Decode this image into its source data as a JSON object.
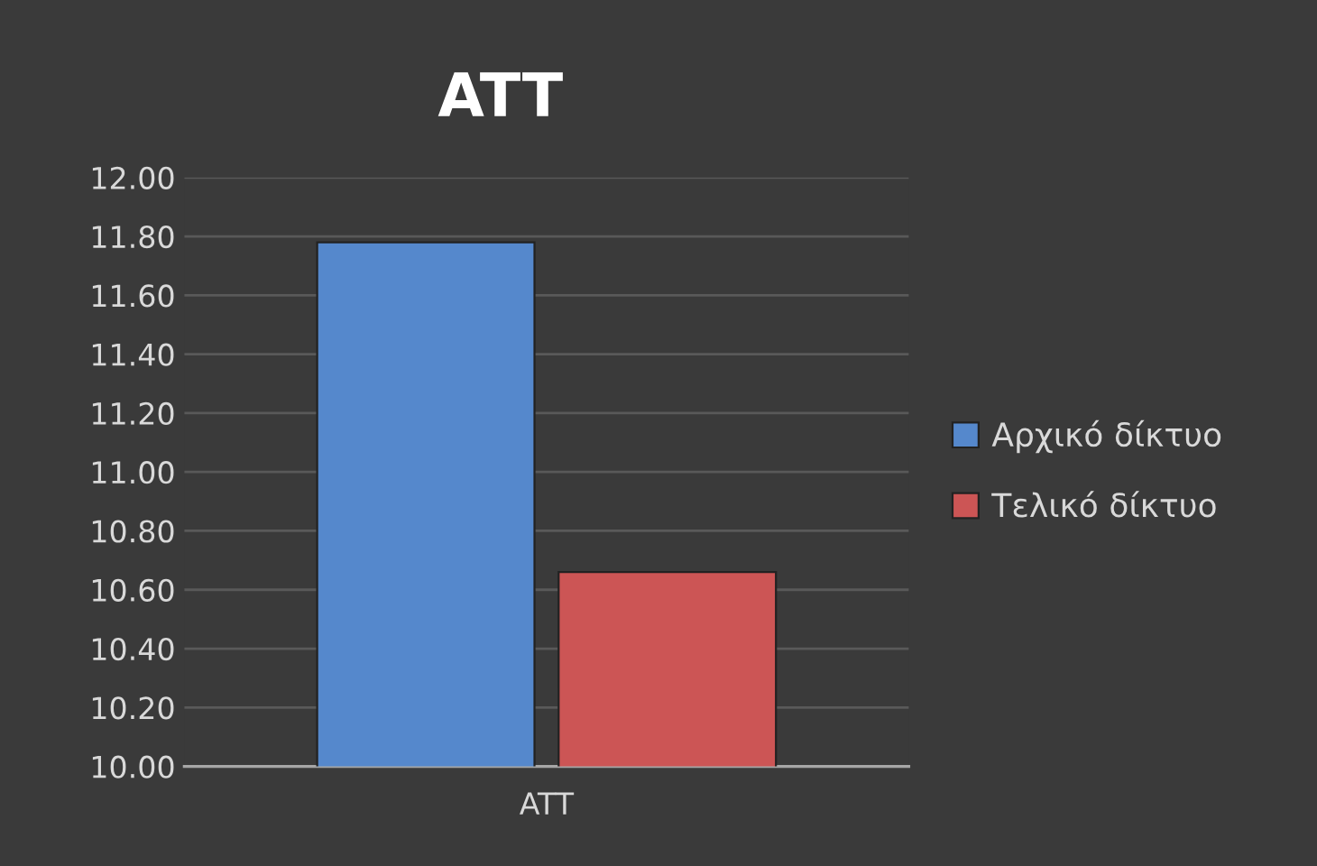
{
  "chart_data": {
    "type": "bar",
    "title": "ATT",
    "categories": [
      "ATT"
    ],
    "series": [
      {
        "name": "Αρχικό δίκτυο",
        "color": "#5588cc",
        "values": [
          11.78
        ]
      },
      {
        "name": "Τελικό δίκτυο",
        "color": "#cc5555",
        "values": [
          10.66
        ]
      }
    ],
    "ylim": [
      10.0,
      12.0
    ],
    "yticks": [
      {
        "value": 10.0,
        "label": "10.00"
      },
      {
        "value": 10.2,
        "label": "10.20"
      },
      {
        "value": 10.4,
        "label": "10.40"
      },
      {
        "value": 10.6,
        "label": "10.60"
      },
      {
        "value": 10.8,
        "label": "10.80"
      },
      {
        "value": 11.0,
        "label": "11.00"
      },
      {
        "value": 11.2,
        "label": "11.20"
      },
      {
        "value": 11.4,
        "label": "11.40"
      },
      {
        "value": 11.6,
        "label": "11.60"
      },
      {
        "value": 11.8,
        "label": "11.80"
      },
      {
        "value": 12.0,
        "label": "12.00"
      }
    ],
    "grid": "y",
    "legend": "right"
  }
}
